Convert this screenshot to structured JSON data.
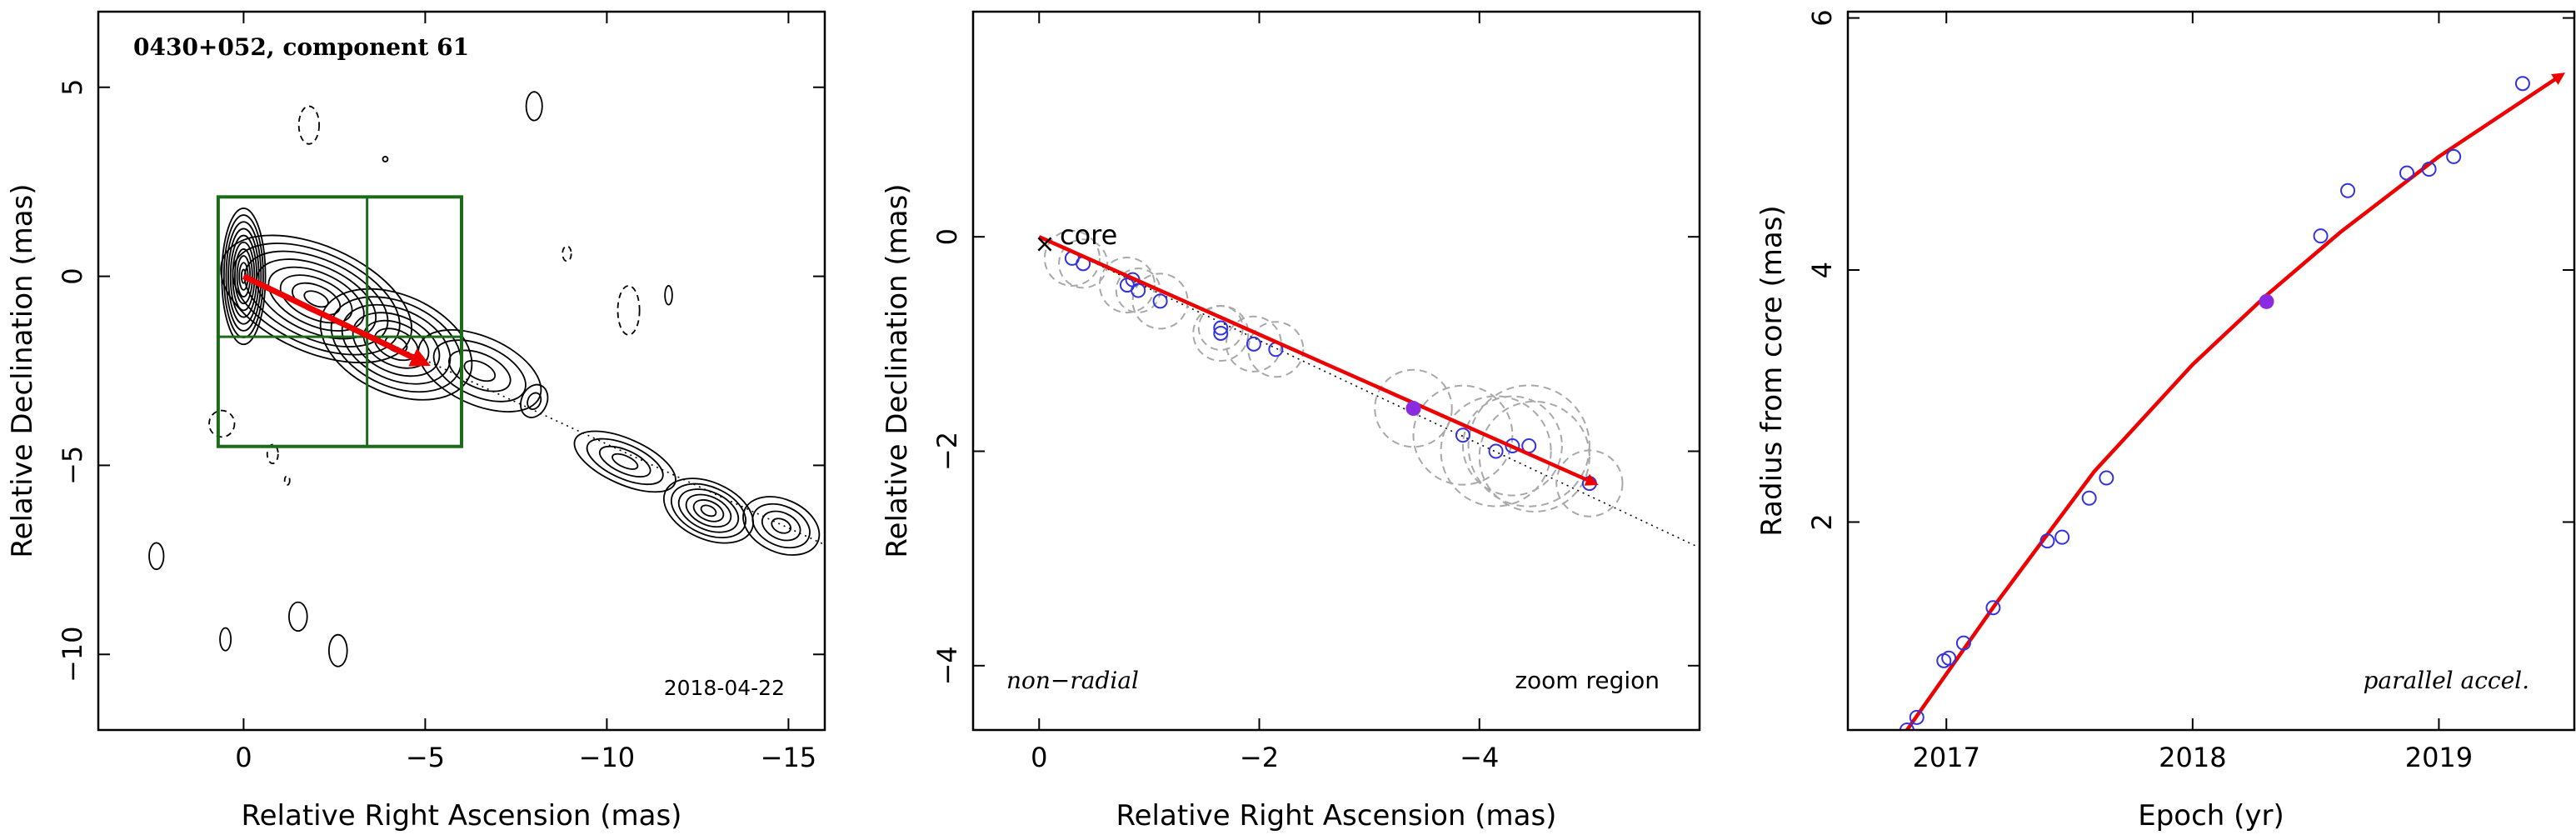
{
  "chart_data": [
    {
      "type": "contour",
      "title": "0430+052, component 61",
      "date_label": "2018-04-22",
      "xlabel": "Relative Right Ascension (mas)",
      "ylabel": "Relative Declination (mas)",
      "xlim": [
        4.0,
        -16.0
      ],
      "ylim": [
        -12.0,
        7.0
      ],
      "xticks": [
        0,
        -5,
        -10,
        -15
      ],
      "xtick_labels": [
        "0",
        "−5",
        "−10",
        "−15"
      ],
      "yticks": [
        5,
        0,
        -5,
        -10
      ],
      "ytick_labels": [
        "5",
        "0",
        "−5",
        "−10"
      ],
      "jet_ridge_line": [
        [
          0,
          0
        ],
        [
          -16,
          -7.1
        ]
      ],
      "motion_vector": {
        "from": [
          0,
          0
        ],
        "to": [
          -5.0,
          -2.3
        ],
        "color": "#ee0000"
      },
      "zoom_box": {
        "x": [
          0.7,
          -6.0
        ],
        "y": [
          2.1,
          -4.5
        ],
        "vline_x": -3.4,
        "hline_y": -1.6,
        "color": "#1b6b1b"
      },
      "core_contours": [
        {
          "x": 0.0,
          "y": 0.0,
          "levels": 10,
          "rx": 0.6,
          "ry": 1.8
        },
        {
          "x": -2.0,
          "y": -0.6,
          "levels": 8,
          "rx": 2.8,
          "ry": 1.4
        },
        {
          "x": -4.2,
          "y": -1.8,
          "levels": 7,
          "rx": 2.2,
          "ry": 1.3
        },
        {
          "x": -6.5,
          "y": -2.5,
          "levels": 4,
          "rx": 1.8,
          "ry": 0.9
        }
      ],
      "jet_contours": [
        {
          "x": -8.0,
          "y": -3.3,
          "levels": 2,
          "rx": 0.35,
          "ry": 0.45
        },
        {
          "x": -10.5,
          "y": -4.9,
          "levels": 4,
          "rx": 1.5,
          "ry": 0.6
        },
        {
          "x": -12.8,
          "y": -6.2,
          "levels": 6,
          "rx": 1.3,
          "ry": 0.75
        },
        {
          "x": -14.8,
          "y": -6.6,
          "levels": 4,
          "rx": 1.1,
          "ry": 0.7
        }
      ],
      "small_contours": [
        {
          "x": -8.0,
          "y": 4.5,
          "rx": 0.22,
          "ry": 0.38,
          "dashed": false
        },
        {
          "x": -1.8,
          "y": 4.0,
          "rx": 0.28,
          "ry": 0.5,
          "dashed": true
        },
        {
          "x": -3.9,
          "y": 3.1,
          "rx": 0.05,
          "ry": 0.05,
          "dashed": false
        },
        {
          "x": -8.9,
          "y": 0.6,
          "rx": 0.12,
          "ry": 0.2,
          "dashed": true
        },
        {
          "x": -10.6,
          "y": -0.9,
          "rx": 0.3,
          "ry": 0.65,
          "dashed": true
        },
        {
          "x": -11.7,
          "y": -0.5,
          "rx": 0.1,
          "ry": 0.25,
          "dashed": false
        },
        {
          "x": 0.6,
          "y": -3.9,
          "rx": 0.35,
          "ry": 0.35,
          "dashed": true
        },
        {
          "x": -0.8,
          "y": -4.7,
          "rx": 0.15,
          "ry": 0.25,
          "dashed": true
        },
        {
          "x": -1.2,
          "y": -5.4,
          "rx": 0.07,
          "ry": 0.12,
          "dashed": true
        },
        {
          "x": 2.4,
          "y": -7.4,
          "rx": 0.2,
          "ry": 0.35,
          "dashed": false
        },
        {
          "x": -1.5,
          "y": -9.0,
          "rx": 0.25,
          "ry": 0.38,
          "dashed": false
        },
        {
          "x": 0.5,
          "y": -9.6,
          "rx": 0.15,
          "ry": 0.3,
          "dashed": false
        },
        {
          "x": -2.6,
          "y": -9.9,
          "rx": 0.25,
          "ry": 0.42,
          "dashed": false
        }
      ]
    },
    {
      "type": "scatter",
      "xlabel": "Relative Right Ascension (mas)",
      "ylabel": "Relative Declination (mas)",
      "xlim": [
        0.6,
        -6.0
      ],
      "ylim": [
        -4.6,
        2.1
      ],
      "xticks": [
        0,
        -2,
        -4
      ],
      "xtick_labels": [
        "0",
        "−2",
        "−4"
      ],
      "yticks": [
        0,
        -2,
        -4
      ],
      "ytick_labels": [
        "0",
        "−2",
        "−4"
      ],
      "core_label": "core",
      "left_annotation": "non−radial",
      "right_annotation": "zoom region",
      "ridge_line": [
        [
          0,
          0
        ],
        [
          -6.0,
          -2.9
        ]
      ],
      "vector": {
        "from": [
          0,
          0
        ],
        "to": [
          -5.05,
          -2.3
        ],
        "color": "#ee0000"
      },
      "series": [
        {
          "points": [
            [
              -0.3,
              -0.2
            ],
            [
              -0.4,
              -0.25
            ],
            [
              -0.8,
              -0.45
            ],
            [
              -0.9,
              -0.5
            ],
            [
              -0.85,
              -0.4
            ],
            [
              -1.1,
              -0.6
            ],
            [
              -1.65,
              -0.9
            ],
            [
              -1.65,
              -0.85
            ],
            [
              -1.95,
              -1.0
            ],
            [
              -2.15,
              -1.05
            ],
            [
              -3.85,
              -1.85
            ],
            [
              -4.15,
              -2.0
            ],
            [
              -4.3,
              -1.95
            ],
            [
              -4.45,
              -1.95
            ],
            [
              -5.0,
              -2.3
            ]
          ],
          "color": "#3333dd"
        }
      ],
      "uncertainty_circles": [
        {
          "x": -0.3,
          "y": -0.2,
          "r": 0.25
        },
        {
          "x": -0.4,
          "y": -0.25,
          "r": 0.22
        },
        {
          "x": -0.8,
          "y": -0.45,
          "r": 0.25
        },
        {
          "x": -0.9,
          "y": -0.5,
          "r": 0.2
        },
        {
          "x": -1.1,
          "y": -0.6,
          "r": 0.25
        },
        {
          "x": -1.65,
          "y": -0.9,
          "r": 0.25
        },
        {
          "x": -1.65,
          "y": -0.85,
          "r": 0.2
        },
        {
          "x": -1.95,
          "y": -1.0,
          "r": 0.25
        },
        {
          "x": -2.15,
          "y": -1.05,
          "r": 0.25
        },
        {
          "x": -3.4,
          "y": -1.6,
          "r": 0.35
        },
        {
          "x": -3.85,
          "y": -1.85,
          "r": 0.45
        },
        {
          "x": -4.15,
          "y": -2.0,
          "r": 0.5
        },
        {
          "x": -4.3,
          "y": -1.95,
          "r": 0.45
        },
        {
          "x": -4.45,
          "y": -1.95,
          "r": 0.55
        },
        {
          "x": -4.5,
          "y": -2.05,
          "r": 0.5
        },
        {
          "x": -5.0,
          "y": -2.3,
          "r": 0.3
        }
      ],
      "highlight_point": {
        "x": -3.4,
        "y": -1.6,
        "color": "#8a2be2"
      }
    },
    {
      "type": "scatter",
      "xlabel": "Epoch (yr)",
      "ylabel": "Radius from core (mas)",
      "annotation": "parallel accel.",
      "xlim": [
        2016.6,
        2019.55
      ],
      "ylim": [
        0.35,
        6.05
      ],
      "xticks": [
        2017,
        2018,
        2019
      ],
      "xtick_labels": [
        "2017",
        "2018",
        "2019"
      ],
      "yticks": [
        2,
        4,
        6
      ],
      "ytick_labels": [
        "2",
        "4",
        "6"
      ],
      "fit_curve": {
        "x": [
          2016.84,
          2017.2,
          2017.6,
          2018.0,
          2018.3,
          2018.6,
          2019.0,
          2019.5
        ],
        "y": [
          0.35,
          1.35,
          2.4,
          3.25,
          3.8,
          4.3,
          4.9,
          5.55
        ],
        "color": "#ee0000"
      },
      "series": [
        {
          "points": [
            [
              2016.84,
              0.35
            ],
            [
              2016.88,
              0.45
            ],
            [
              2016.99,
              0.9
            ],
            [
              2017.01,
              0.92
            ],
            [
              2017.07,
              1.04
            ],
            [
              2017.19,
              1.32
            ],
            [
              2017.41,
              1.85
            ],
            [
              2017.47,
              1.88
            ],
            [
              2017.58,
              2.19
            ],
            [
              2017.65,
              2.35
            ],
            [
              2018.52,
              4.27
            ],
            [
              2018.63,
              4.63
            ],
            [
              2018.87,
              4.77
            ],
            [
              2018.96,
              4.8
            ],
            [
              2019.06,
              4.9
            ],
            [
              2019.34,
              5.48
            ]
          ],
          "color": "#3333dd"
        }
      ],
      "highlight_point": {
        "x": 2018.3,
        "y": 3.75,
        "color": "#8a2be2"
      }
    }
  ]
}
